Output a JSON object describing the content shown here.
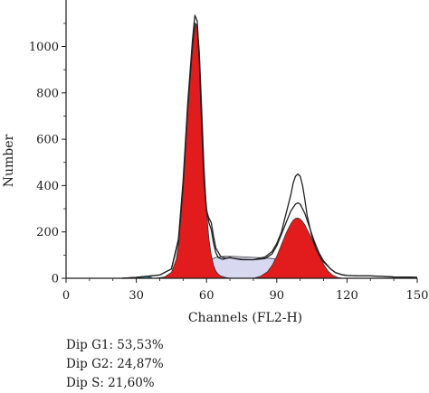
{
  "chart_data": {
    "type": "area",
    "title": "",
    "xlabel": "Channels (FL2-H)",
    "ylabel": "Number",
    "xlim": [
      0,
      150
    ],
    "ylim": [
      0,
      1150
    ],
    "xticks": [
      "0",
      "30",
      "60",
      "90",
      "120",
      "150"
    ],
    "yticks": [
      "0",
      "200",
      "400",
      "600",
      "800",
      "1000"
    ],
    "grid": false,
    "legend": "none",
    "series": [
      {
        "kind": "outline",
        "color": "#222222",
        "x": [
          24,
          30,
          40,
          45,
          48,
          50,
          52,
          54,
          55,
          56,
          57,
          58,
          59,
          60,
          61,
          62,
          63,
          64,
          65,
          66,
          67,
          68,
          70,
          72,
          75,
          80,
          85,
          88,
          90,
          92,
          94,
          96,
          97,
          98,
          99,
          100,
          101,
          102,
          103,
          105,
          107,
          110,
          113,
          115,
          118,
          120,
          125,
          130,
          135,
          140,
          145,
          150
        ],
        "y": [
          0,
          4,
          14,
          40,
          170,
          420,
          760,
          1030,
          1135,
          1110,
          940,
          660,
          420,
          300,
          240,
          210,
          150,
          110,
          90,
          85,
          82,
          85,
          90,
          85,
          80,
          80,
          92,
          115,
          150,
          200,
          280,
          360,
          410,
          440,
          450,
          440,
          400,
          340,
          270,
          180,
          120,
          70,
          40,
          25,
          15,
          12,
          10,
          10,
          8,
          5,
          5,
          4
        ]
      },
      {
        "kind": "outline",
        "color": "#222222",
        "x": [
          24,
          30,
          40,
          45,
          48,
          50,
          52,
          54,
          55,
          56,
          57,
          58,
          59,
          60,
          61,
          62,
          63,
          64,
          66,
          68,
          70,
          75,
          80,
          85,
          88,
          90,
          92,
          94,
          96,
          98,
          99,
          100,
          102,
          104,
          106,
          108,
          110,
          113,
          115,
          118,
          120,
          125,
          130,
          135,
          140,
          145,
          150
        ],
        "y": [
          0,
          4,
          14,
          40,
          160,
          400,
          740,
          1010,
          1100,
          1090,
          920,
          640,
          410,
          290,
          260,
          240,
          180,
          130,
          95,
          86,
          88,
          82,
          80,
          85,
          105,
          140,
          190,
          240,
          290,
          320,
          325,
          320,
          280,
          220,
          160,
          110,
          75,
          40,
          25,
          15,
          12,
          10,
          10,
          8,
          6,
          5,
          4
        ]
      },
      {
        "kind": "filled",
        "name": "Dip G1",
        "color": "#e21c1c",
        "x": [
          38,
          42,
          45,
          47,
          48,
          50,
          52,
          54,
          55,
          56,
          57,
          58,
          59,
          60,
          61,
          62,
          63,
          64,
          65,
          66,
          68,
          70
        ],
        "y": [
          0,
          5,
          25,
          80,
          140,
          380,
          720,
          990,
          1085,
          1095,
          980,
          740,
          480,
          290,
          170,
          100,
          55,
          30,
          18,
          10,
          4,
          0
        ]
      },
      {
        "kind": "filled",
        "name": "Dip G2",
        "color": "#e21c1c",
        "x": [
          80,
          83,
          86,
          88,
          90,
          92,
          94,
          96,
          97,
          98,
          99,
          100,
          101,
          102,
          104,
          106,
          108,
          110,
          112,
          114,
          116,
          118
        ],
        "y": [
          0,
          8,
          28,
          55,
          95,
          145,
          195,
          235,
          250,
          258,
          260,
          255,
          245,
          230,
          190,
          145,
          100,
          60,
          30,
          12,
          4,
          0
        ]
      },
      {
        "kind": "filled",
        "name": "Dip S",
        "color": "#d8d8f0",
        "x": [
          48,
          52,
          56,
          60,
          64,
          68,
          72,
          76,
          80,
          84,
          88,
          92,
          96,
          100,
          104,
          108,
          112
        ],
        "y": [
          0,
          14,
          40,
          72,
          90,
          95,
          94,
          92,
          90,
          88,
          85,
          80,
          70,
          55,
          35,
          14,
          0
        ]
      },
      {
        "kind": "filled",
        "color": "#2ab5c6",
        "x": [
          30,
          32,
          34,
          36,
          37
        ],
        "y": [
          0,
          4,
          8,
          6,
          0
        ]
      }
    ],
    "annotations": [
      "Dip G1: 53,53%",
      "Dip G2: 24,87%",
      "Dip S: 21,60%"
    ]
  }
}
